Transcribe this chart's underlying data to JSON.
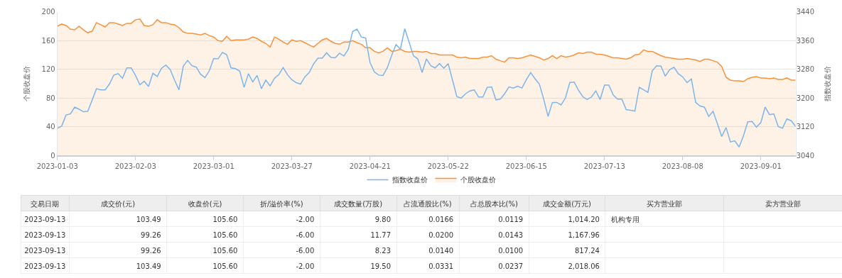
{
  "chart_data": [
    {
      "type": "line",
      "ylabel": "个股收盘价",
      "y2label": "指数收盘价",
      "categories": [
        "2023-01-03",
        null,
        null,
        null,
        null,
        null,
        null,
        null,
        null,
        null,
        null,
        null,
        null,
        null,
        null,
        null,
        null,
        null,
        "2023-02-03",
        null,
        null,
        null,
        null,
        null,
        null,
        null,
        null,
        null,
        null,
        null,
        null,
        null,
        null,
        null,
        null,
        null,
        "2023-03-01",
        null,
        null,
        null,
        null,
        null,
        null,
        null,
        null,
        null,
        null,
        null,
        null,
        null,
        null,
        null,
        null,
        null,
        "2023-03-27",
        null,
        null,
        null,
        null,
        null,
        null,
        null,
        null,
        null,
        null,
        null,
        null,
        null,
        null,
        null,
        null,
        null,
        "2023-04-21",
        null,
        null,
        null,
        null,
        null,
        null,
        null,
        null,
        null,
        null,
        null,
        null,
        null,
        null,
        null,
        null,
        null,
        "2023-05-22",
        null,
        null,
        null,
        null,
        null,
        null,
        null,
        null,
        null,
        null,
        null,
        null,
        null,
        null,
        null,
        null,
        null,
        "2023-06-15",
        null,
        null,
        null,
        null,
        null,
        null,
        null,
        null,
        null,
        null,
        null,
        null,
        null,
        null,
        null,
        null,
        null,
        "2023-07-13",
        null,
        null,
        null,
        null,
        null,
        null,
        null,
        null,
        null,
        null,
        null,
        null,
        null,
        null,
        null,
        null,
        null,
        "2023-08-08",
        null,
        null,
        null,
        null,
        null,
        null,
        null,
        null,
        null,
        null,
        null,
        null,
        null,
        null,
        null,
        null,
        null,
        "2023-09-01",
        null,
        null,
        null,
        null,
        null,
        null,
        null,
        null
      ],
      "series": [
        {
          "name": "指数收盘价",
          "type": "line",
          "axis": "y2",
          "color": "#7cb5ec",
          "values": [
            3116,
            3122,
            3153,
            3156,
            3175,
            3169,
            3162,
            3163,
            3194,
            3226,
            3223,
            3223,
            3239,
            3264,
            3268,
            3255,
            3284,
            3284,
            3263,
            3237,
            3247,
            3232,
            3269,
            3260,
            3283,
            3292,
            3279,
            3250,
            3223,
            3289,
            3305,
            3290,
            3286,
            3266,
            3257,
            3276,
            3310,
            3309,
            3327,
            3321,
            3284,
            3282,
            3275,
            3230,
            3268,
            3245,
            3263,
            3226,
            3250,
            3234,
            3255,
            3265,
            3285,
            3265,
            3251,
            3243,
            3239,
            3259,
            3271,
            3295,
            3311,
            3311,
            3326,
            3313,
            3312,
            3325,
            3317,
            3336,
            3385,
            3392,
            3370,
            3367,
            3299,
            3273,
            3264,
            3263,
            3285,
            3319,
            3349,
            3336,
            3393,
            3356,
            3318,
            3309,
            3271,
            3309,
            3290,
            3284,
            3296,
            3283,
            3296,
            3250,
            3204,
            3200,
            3212,
            3220,
            3223,
            3203,
            3203,
            3230,
            3231,
            3195,
            3197,
            3212,
            3231,
            3228,
            3233,
            3228,
            3251,
            3271,
            3254,
            3239,
            3197,
            3149,
            3188,
            3188,
            3181,
            3200,
            3243,
            3245,
            3222,
            3204,
            3196,
            3203,
            3220,
            3196,
            3236,
            3236,
            3209,
            3197,
            3197,
            3168,
            3166,
            3164,
            3230,
            3223,
            3216,
            3276,
            3290,
            3289,
            3261,
            3279,
            3286,
            3268,
            3259,
            3243,
            3253,
            3188,
            3178,
            3175,
            3149,
            3163,
            3129,
            3093,
            3118,
            3078,
            3081,
            3064,
            3095,
            3134,
            3135,
            3119,
            3132,
            3175,
            3154,
            3156,
            3121,
            3116,
            3142,
            3137,
            3121
          ]
        },
        {
          "name": "个股收盘价",
          "type": "area",
          "color": "#f7923a",
          "values": [
            180,
            183,
            181,
            176,
            175,
            180,
            175,
            171,
            173,
            185,
            182,
            179,
            185,
            185,
            183,
            181,
            184,
            184,
            189,
            190,
            181,
            180,
            182,
            189,
            185,
            185,
            183,
            182,
            178,
            172,
            170,
            170,
            169,
            168,
            170,
            167,
            165,
            160,
            159,
            166,
            160,
            161,
            161,
            161,
            162,
            165,
            163,
            159,
            156,
            151,
            165,
            162,
            158,
            155,
            161,
            159,
            160,
            157,
            154,
            151,
            156,
            161,
            163,
            159,
            156,
            155,
            158,
            158,
            160,
            157,
            155,
            150,
            150,
            145,
            143,
            145,
            150,
            145,
            146,
            148,
            145,
            144,
            145,
            145,
            144,
            145,
            142,
            142,
            140,
            140,
            140,
            140,
            137,
            136,
            137,
            135,
            135,
            135,
            137,
            137,
            139,
            134,
            132,
            130,
            136,
            136,
            135,
            136,
            138,
            140,
            138,
            136,
            133,
            135,
            139,
            135,
            139,
            137,
            138,
            140,
            143,
            142,
            144,
            144,
            141,
            141,
            140,
            138,
            136,
            136,
            135,
            134,
            136,
            140,
            141,
            147,
            145,
            145,
            142,
            139,
            137,
            136,
            135,
            134,
            134,
            135,
            134,
            133,
            131,
            134,
            134,
            132,
            130,
            124,
            109,
            105,
            104,
            104,
            103,
            107,
            109,
            110,
            108,
            108,
            107,
            108,
            106,
            106,
            108,
            105,
            105
          ]
        }
      ],
      "ylim": [
        0,
        200
      ],
      "yticks": [
        0,
        40,
        80,
        120,
        160,
        200
      ],
      "y2lim": [
        3040,
        3440
      ],
      "y2ticks": [
        3040,
        3120,
        3200,
        3280,
        3360,
        3440
      ],
      "grid": "y",
      "legend": "bottom"
    },
    {
      "type": "other",
      "categories": [
        "交易日期",
        "成交价(元)",
        "收盘价(元)",
        "折/溢价率(%)",
        "成交数量(万股)",
        "占流通股比(%)",
        "占总股本比(%)",
        "成交金额(万元)",
        "买方营业部",
        "卖方营业部"
      ],
      "cell_labels": [
        [
          "2023-09-13",
          "103.49",
          "105.60",
          "-2.00",
          "9.80",
          "0.0166",
          "0.0119",
          "1,014.20",
          "机构专用",
          null
        ],
        [
          "2023-09-13",
          "99.26",
          "105.60",
          "-6.00",
          "11.77",
          "0.0200",
          "0.0143",
          "1,167.96",
          null,
          null
        ],
        [
          "2023-09-13",
          "99.26",
          "105.60",
          "-6.00",
          "8.23",
          "0.0140",
          "0.0100",
          "817.24",
          null,
          null
        ],
        [
          "2023-09-13",
          "103.49",
          "105.60",
          "-2.00",
          "19.50",
          "0.0331",
          "0.0237",
          "2,018.06",
          null,
          null
        ]
      ]
    }
  ]
}
